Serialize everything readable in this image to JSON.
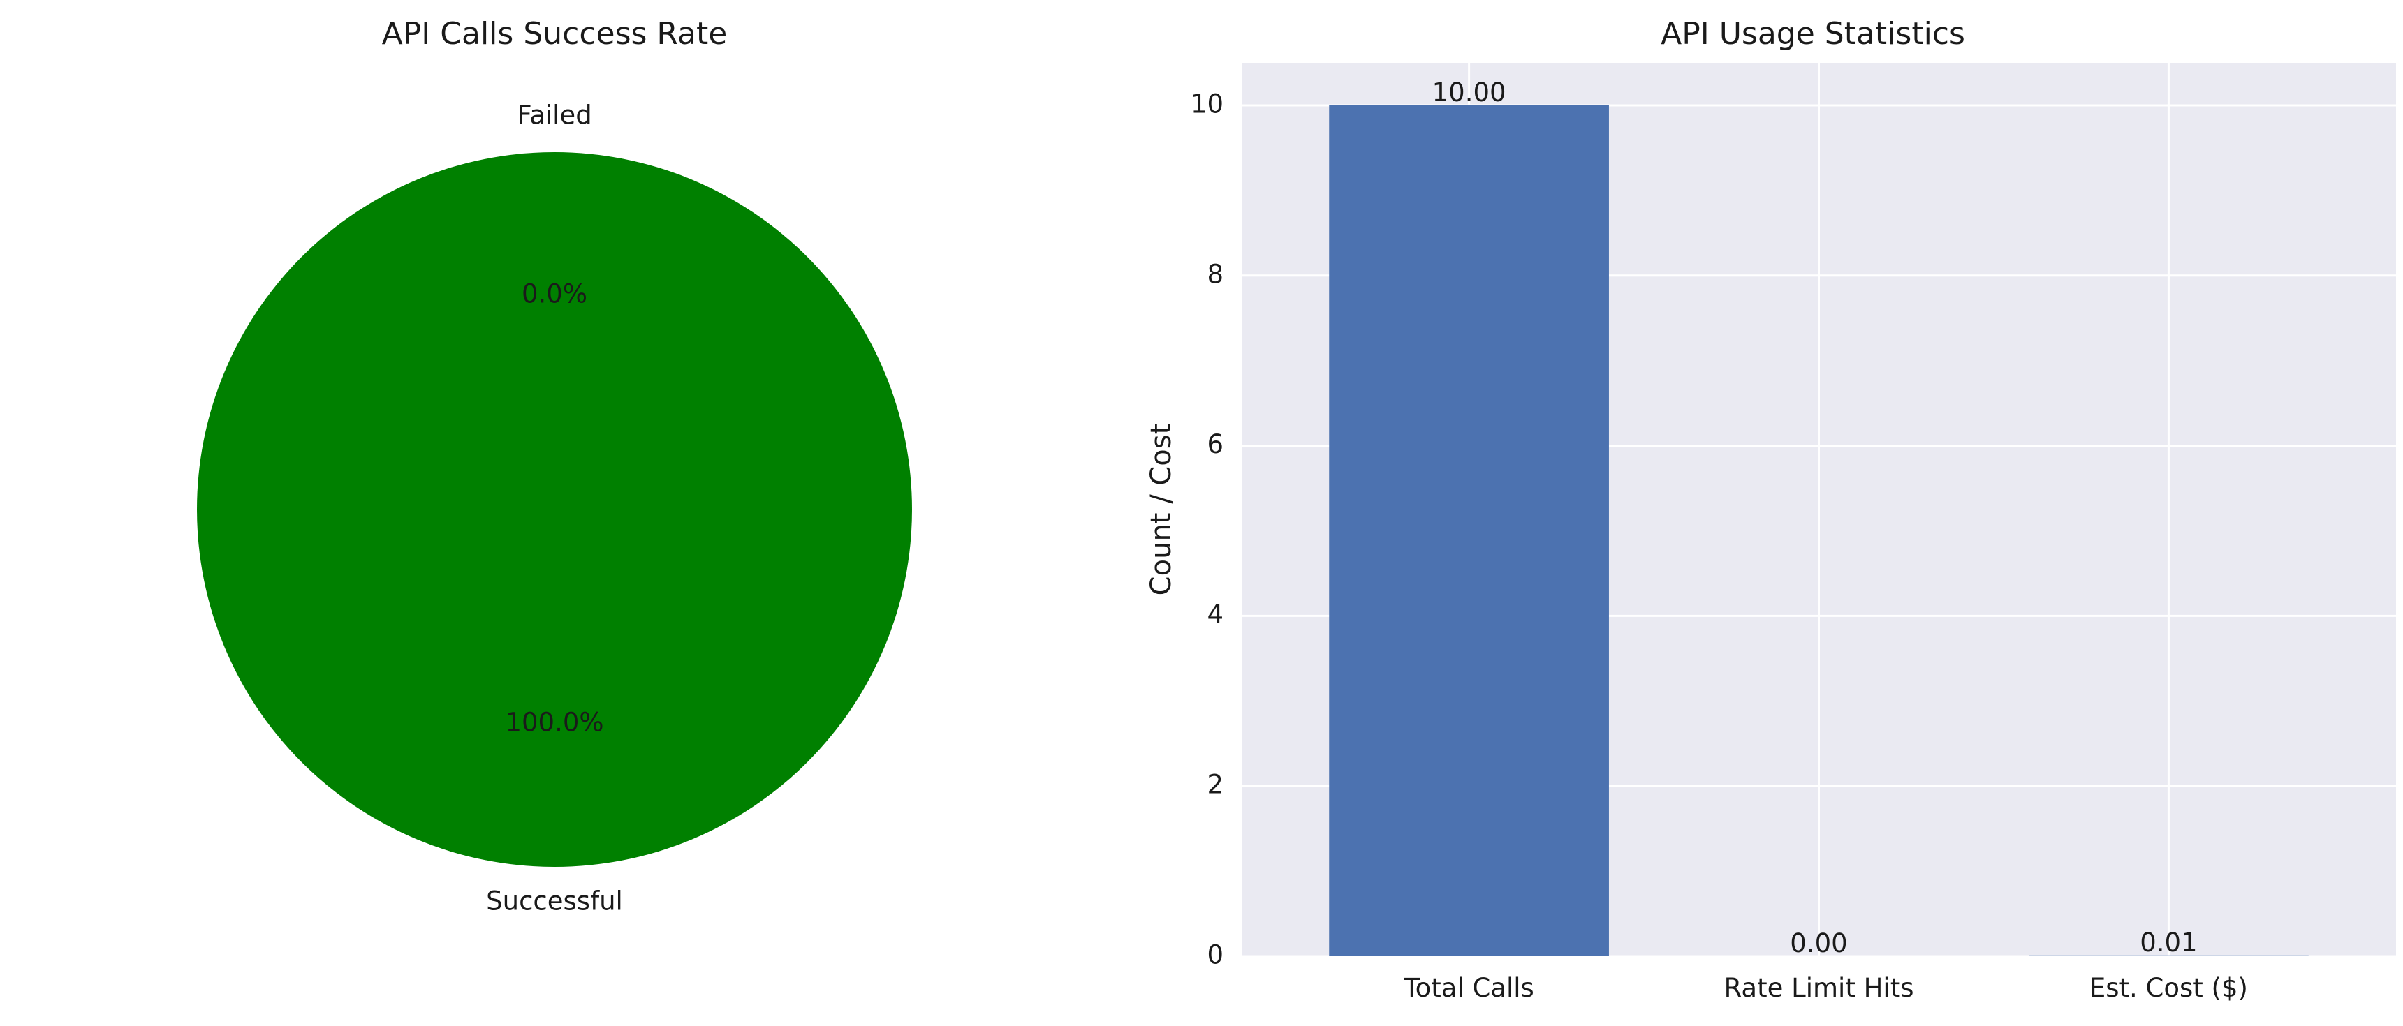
{
  "chart_data": [
    {
      "type": "pie",
      "title": "API Calls Success Rate",
      "slices": [
        {
          "label": "Successful",
          "value": 100.0,
          "pct_label": "100.0%",
          "color": "#008000"
        },
        {
          "label": "Failed",
          "value": 0.0,
          "pct_label": "0.0%",
          "color": "#ff0000"
        }
      ],
      "start_angle_deg": 90
    },
    {
      "type": "bar",
      "title": "API Usage Statistics",
      "xlabel": "",
      "ylabel": "Count / Cost",
      "categories": [
        "Total Calls",
        "Rate Limit Hits",
        "Est. Cost ($)"
      ],
      "values": [
        10.0,
        0.0,
        0.01
      ],
      "value_labels": [
        "10.00",
        "0.00",
        "0.01"
      ],
      "ylim": [
        0,
        10.5
      ],
      "yticks": [
        0,
        2,
        4,
        6,
        8,
        10
      ],
      "ytick_labels": [
        "0",
        "2",
        "4",
        "6",
        "8",
        "10"
      ],
      "grid": true,
      "bar_color": "#4c72b0",
      "background_color": "#eaeaf2"
    }
  ]
}
